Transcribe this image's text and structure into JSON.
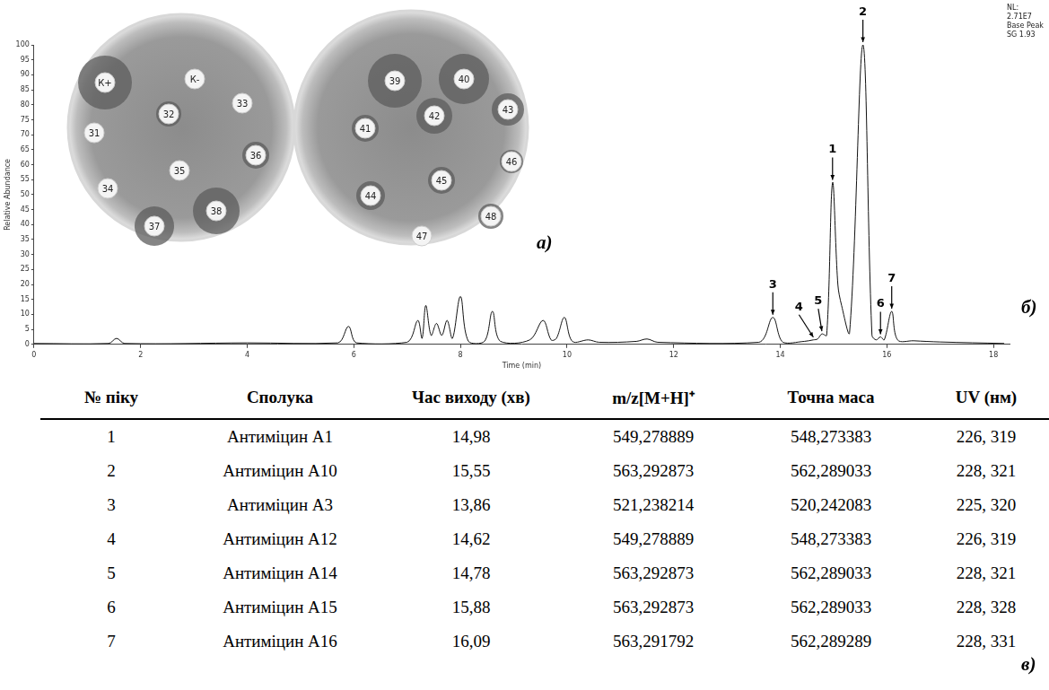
{
  "letters": [
    "а)",
    "б)",
    "в)"
  ],
  "dishes": {
    "plates": [
      [
        "К+",
        "К-",
        "31",
        "32",
        "33",
        "34",
        "35",
        "36",
        "37",
        "38"
      ],
      [
        "39",
        "40",
        "41",
        "42",
        "43",
        "44",
        "45",
        "46",
        "47",
        "48"
      ]
    ]
  },
  "chart_data": {
    "type": "line",
    "subtitle": [
      "NL:",
      "2.71E7",
      "Base Peak",
      "SG 1.93"
    ],
    "x_label": "Time (min)",
    "y_label": "Relative Abundance",
    "color": "#111111",
    "grid": false,
    "x": [
      0,
      1.4,
      1.55,
      1.7,
      4.0,
      5.7,
      5.9,
      6.05,
      7.0,
      7.2,
      7.28,
      7.35,
      7.45,
      7.55,
      7.65,
      7.75,
      7.85,
      8.0,
      8.15,
      8.45,
      8.6,
      8.75,
      9.3,
      9.55,
      9.7,
      9.8,
      9.95,
      10.1,
      10.4,
      10.6,
      11.3,
      11.5,
      11.7,
      13.6,
      13.86,
      14.05,
      14.45,
      14.62,
      14.7,
      14.78,
      14.87,
      14.98,
      15.08,
      15.15,
      15.3,
      15.55,
      15.72,
      15.8,
      15.88,
      15.95,
      16.09,
      16.2,
      16.5,
      17.0,
      18.2
    ],
    "values": [
      0.3,
      0.3,
      2,
      0.3,
      0.5,
      0.5,
      6,
      0.5,
      0.7,
      8,
      2,
      13,
      3,
      7,
      3,
      8,
      2,
      16,
      1,
      1,
      11,
      1,
      1.5,
      8,
      1.5,
      2,
      9,
      1,
      1.5,
      0.7,
      1,
      1.8,
      0.7,
      0.7,
      9,
      0.7,
      1,
      1.5,
      1.8,
      3.5,
      3,
      54,
      20,
      13,
      4,
      100,
      3,
      1.5,
      2.5,
      1.5,
      11,
      1.5,
      1.2,
      0.8,
      0.3
    ],
    "xlim": [
      0,
      18.3
    ],
    "xticks": [
      0,
      2,
      4,
      6,
      8,
      10,
      12,
      14,
      16,
      18
    ],
    "ylim": [
      0,
      100
    ],
    "yticks": [
      0,
      5,
      10,
      15,
      20,
      25,
      30,
      35,
      40,
      45,
      50,
      55,
      60,
      65,
      70,
      75,
      80,
      85,
      90,
      95,
      100
    ],
    "annotations": [
      {
        "label": "1",
        "x": 14.98,
        "y": 54
      },
      {
        "label": "2",
        "x": 15.55,
        "y": 100
      },
      {
        "label": "3",
        "x": 13.86,
        "y": 9
      },
      {
        "label": "4",
        "x": 14.62,
        "y": 1.5
      },
      {
        "label": "5",
        "x": 14.78,
        "y": 3.5
      },
      {
        "label": "6",
        "x": 15.88,
        "y": 2.5
      },
      {
        "label": "7",
        "x": 16.09,
        "y": 11
      }
    ]
  },
  "table": {
    "header": [
      "№ піку",
      "Сполука",
      "Час виходу (хв)",
      "m/z[M+H]⁺",
      "Точна маса",
      "UV (нм)"
    ],
    "rows": [
      [
        "1",
        "Антиміцин А1",
        "14,98",
        "549,278889",
        "548,273383",
        "226, 319"
      ],
      [
        "2",
        "Антиміцин А10",
        "15,55",
        "563,292873",
        "562,289033",
        "228, 321"
      ],
      [
        "3",
        "Антиміцин А3",
        "13,86",
        "521,238214",
        "520,242083",
        "225, 320"
      ],
      [
        "4",
        "Антиміцин А12",
        "14,62",
        "549,278889",
        "548,273383",
        "226, 319"
      ],
      [
        "5",
        "Антиміцин А14",
        "14,78",
        "563,292873",
        "562,289033",
        "228, 321"
      ],
      [
        "6",
        "Антиміцин А15",
        "15,88",
        "563,292873",
        "562,289033",
        "228, 328"
      ],
      [
        "7",
        "Антиміцин А16",
        "16,09",
        "563,291792",
        "562,289289",
        "228, 331"
      ]
    ]
  }
}
